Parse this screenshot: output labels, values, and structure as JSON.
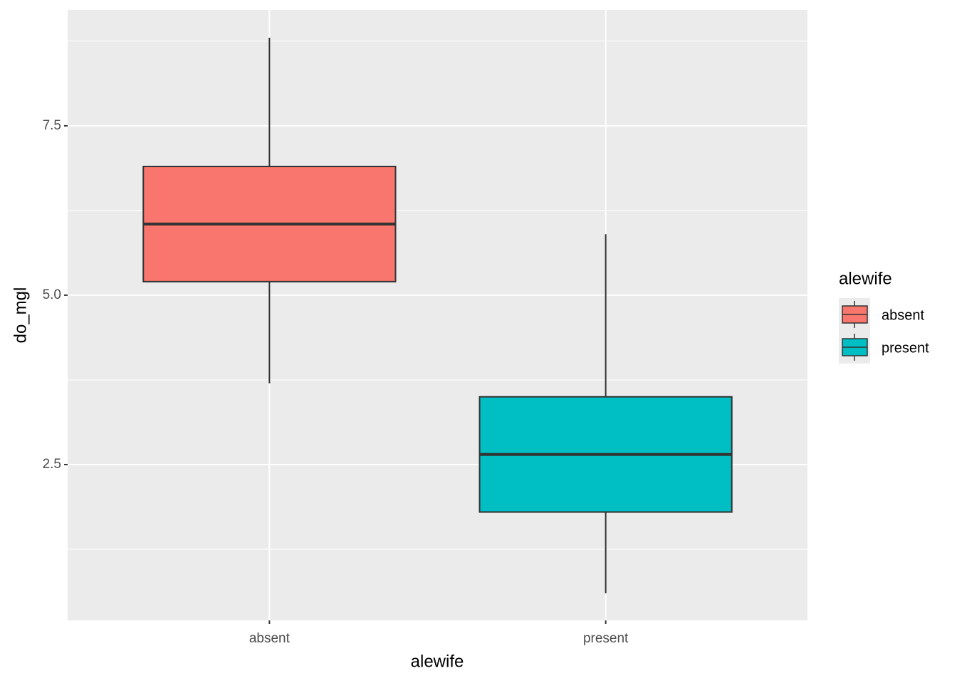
{
  "chart_data": {
    "type": "box",
    "x_label": "alewife",
    "y_label": "do_mgl",
    "categories": [
      "absent",
      "present"
    ],
    "boxes": [
      {
        "min": 3.7,
        "q1": 5.2,
        "median": 6.05,
        "q3": 6.9,
        "max": 8.8
      },
      {
        "min": 0.6,
        "q1": 1.8,
        "median": 2.65,
        "q3": 3.5,
        "max": 5.9
      }
    ],
    "colors": [
      "#F8766D",
      "#00BFC4"
    ],
    "ylim": [
      0.2,
      9.21
    ],
    "yticks": [
      {
        "value": 2.5,
        "label": "2.5"
      },
      {
        "value": 5,
        "label": "5.0"
      },
      {
        "value": 7.5,
        "label": "7.5"
      }
    ],
    "minor_yticks": [
      1.25,
      3.75,
      6.25,
      8.75
    ],
    "grid": true,
    "legend": {
      "title": "alewife",
      "entries": [
        "absent",
        "present"
      ],
      "position": "right"
    }
  }
}
